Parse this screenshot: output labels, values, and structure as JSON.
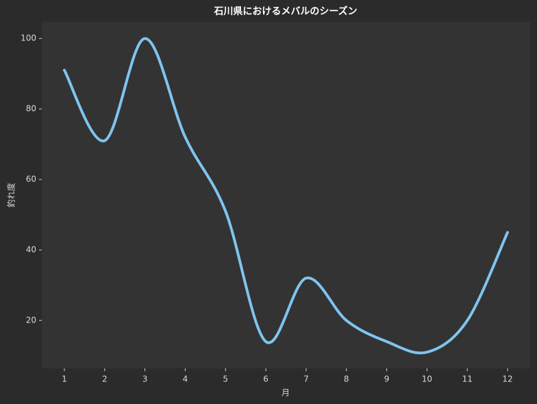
{
  "chart_data": {
    "type": "line",
    "title": "石川県におけるメバルのシーズン",
    "x_label": "月",
    "y_label": "釣れ度",
    "x": [
      1,
      2,
      3,
      4,
      5,
      6,
      7,
      8,
      9,
      10,
      11,
      12
    ],
    "series": [
      {
        "name": "釣れ度",
        "color": "#7fc4f0",
        "values": [
          91,
          71,
          100,
          72,
          51,
          14,
          32,
          20,
          14,
          11,
          20,
          45
        ]
      }
    ],
    "xlim": [
      0.44,
      12.56
    ],
    "ylim": [
      6.4,
      104.7
    ],
    "xticks": [
      1,
      2,
      3,
      4,
      5,
      6,
      7,
      8,
      9,
      10,
      11,
      12
    ],
    "yticks": [
      20,
      40,
      60,
      80,
      100
    ],
    "grid": false,
    "smooth": true
  }
}
